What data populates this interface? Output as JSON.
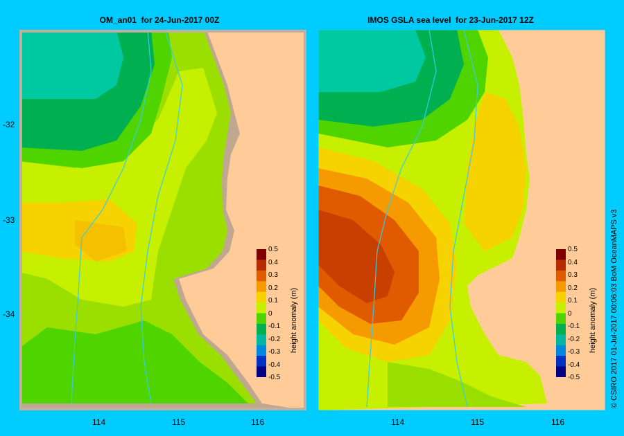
{
  "panels": [
    {
      "title": "OM_an01  for 24-Jun-2017 00Z"
    },
    {
      "title": "IMOS GSLA sea level  for 23-Jun-2017 12Z"
    }
  ],
  "lat_ticks": [
    "-32",
    "-33",
    "-34"
  ],
  "lon_ticks": [
    "114",
    "115",
    "116"
  ],
  "colorbar": {
    "label": "height anomaly (m)",
    "ticks": [
      "0.5",
      "0.4",
      "0.3",
      "0.2",
      "0.1",
      "0",
      "-0.1",
      "-0.2",
      "-0.3",
      "-0.4",
      "-0.5"
    ],
    "colors": [
      "#800000",
      "#b52c00",
      "#e05a00",
      "#f59a00",
      "#f5d200",
      "#c6f000",
      "#50d400",
      "#00b050",
      "#00b8a0",
      "#0088e0",
      "#0030c0",
      "#000080"
    ]
  },
  "credit": "© CSIRO 2017   01-Jul-2017 00:06:03 BoM OceanMAPS v3",
  "colors": {
    "land": "#ffcc99",
    "coast": "#c0a890",
    "background": "#00ccff"
  }
}
